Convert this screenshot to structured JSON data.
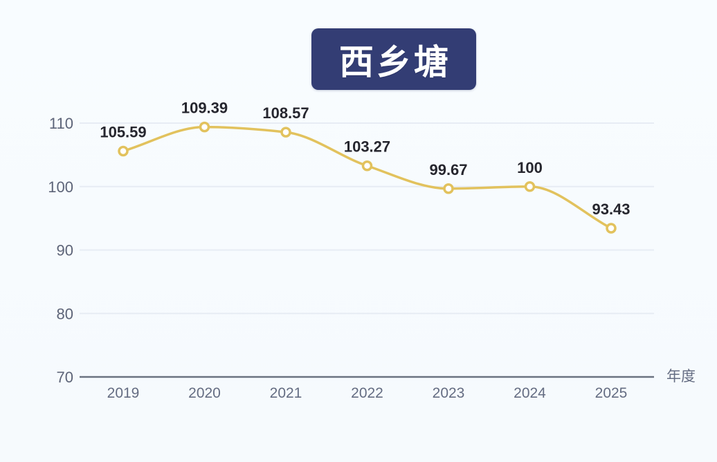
{
  "page": {
    "background_color": "#f7fbfe"
  },
  "title": {
    "text": "西乡塘",
    "badge_color": "#333d74",
    "text_color": "#ffffff"
  },
  "chart_data": {
    "type": "line",
    "title": "西乡塘",
    "categories": [
      "2019",
      "2020",
      "2021",
      "2022",
      "2023",
      "2024",
      "2025"
    ],
    "values": [
      105.59,
      109.39,
      108.57,
      103.27,
      99.67,
      100,
      93.43
    ],
    "point_labels": [
      "105.59",
      "109.39",
      "108.57",
      "103.27",
      "99.67",
      "100",
      "93.43"
    ],
    "xlabel": "年度",
    "ylabel": "",
    "ylim": [
      70,
      110
    ],
    "y_ticks": [
      70,
      80,
      90,
      100,
      110
    ],
    "grid": true,
    "legend": "none",
    "smooth": true,
    "line_color": "#e2c25d",
    "marker_ring_color": "#e2c25d",
    "marker_fill_color": "#ffffff",
    "grid_line_color": "#e7ecf4",
    "axis_line_color": "#6b7280",
    "label_color": "#26262e",
    "tick_color": "#5d6478"
  }
}
